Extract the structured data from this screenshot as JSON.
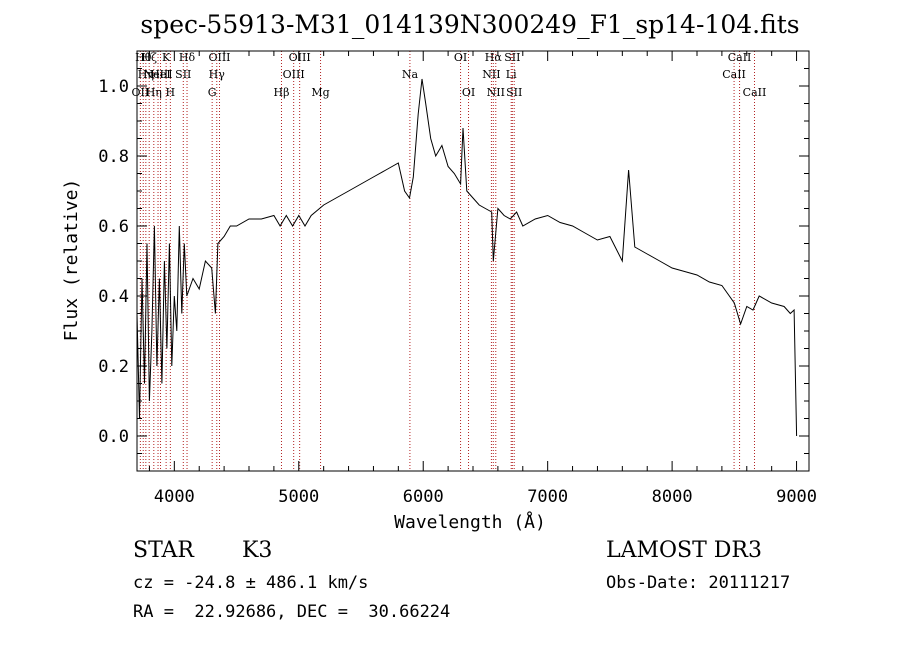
{
  "chart_data": {
    "type": "line",
    "title": "spec-55913-M31_014139N300249_F1_sp14-104.fits",
    "xlabel": "Wavelength (Å)",
    "ylabel": "Flux (relative)",
    "xlim": [
      3700,
      9100
    ],
    "ylim": [
      -0.1,
      1.1
    ],
    "x_ticks": [
      4000,
      5000,
      6000,
      7000,
      8000,
      9000
    ],
    "y_ticks": [
      0.0,
      0.2,
      0.4,
      0.6,
      0.8,
      1.0
    ],
    "x_tick_labels": [
      "4000",
      "5000",
      "6000",
      "7000",
      "8000",
      "9000"
    ],
    "y_tick_labels": [
      "0.0",
      "0.2",
      "0.4",
      "0.6",
      "0.8",
      "1.0"
    ],
    "grid": false,
    "line_color": "#000000",
    "marker_color": "#b22222",
    "series": [
      {
        "x": [
          3700,
          3720,
          3740,
          3760,
          3780,
          3800,
          3820,
          3840,
          3860,
          3880,
          3900,
          3920,
          3940,
          3960,
          3980,
          4000,
          4020,
          4040,
          4060,
          4080,
          4100,
          4150,
          4200,
          4250,
          4300,
          4330,
          4350,
          4400,
          4450,
          4500,
          4600,
          4700,
          4800,
          4850,
          4900,
          4950,
          5000,
          5050,
          5100,
          5200,
          5300,
          5400,
          5500,
          5600,
          5700,
          5800,
          5850,
          5890,
          5920,
          5960,
          5990,
          6020,
          6060,
          6100,
          6150,
          6200,
          6250,
          6300,
          6320,
          6350,
          6400,
          6450,
          6500,
          6550,
          6563,
          6600,
          6650,
          6700,
          6750,
          6800,
          6900,
          7000,
          7100,
          7200,
          7300,
          7400,
          7500,
          7600,
          7650,
          7700,
          7800,
          7900,
          8000,
          8100,
          8200,
          8300,
          8400,
          8500,
          8550,
          8600,
          8650,
          8700,
          8800,
          8900,
          8950,
          8980,
          9000
        ],
        "y": [
          0.35,
          0.05,
          0.45,
          0.15,
          0.55,
          0.1,
          0.3,
          0.6,
          0.2,
          0.45,
          0.15,
          0.5,
          0.25,
          0.55,
          0.2,
          0.4,
          0.3,
          0.6,
          0.35,
          0.55,
          0.4,
          0.45,
          0.42,
          0.5,
          0.48,
          0.35,
          0.55,
          0.57,
          0.6,
          0.6,
          0.62,
          0.62,
          0.63,
          0.6,
          0.63,
          0.6,
          0.63,
          0.6,
          0.63,
          0.66,
          0.68,
          0.7,
          0.72,
          0.74,
          0.76,
          0.78,
          0.7,
          0.68,
          0.74,
          0.92,
          1.02,
          0.95,
          0.85,
          0.8,
          0.83,
          0.77,
          0.75,
          0.72,
          0.88,
          0.7,
          0.68,
          0.66,
          0.65,
          0.64,
          0.5,
          0.65,
          0.63,
          0.62,
          0.64,
          0.6,
          0.62,
          0.63,
          0.61,
          0.6,
          0.58,
          0.56,
          0.57,
          0.5,
          0.76,
          0.54,
          0.52,
          0.5,
          0.48,
          0.47,
          0.46,
          0.44,
          0.43,
          0.38,
          0.32,
          0.37,
          0.36,
          0.4,
          0.38,
          0.37,
          0.35,
          0.36,
          0.0
        ]
      }
    ],
    "lines": [
      {
        "wl": 3727,
        "label": "OII",
        "row": 2
      },
      {
        "wl": 3750,
        "label": "Hθ",
        "row": 0
      },
      {
        "wl": 3771,
        "label": "Hη",
        "row": 1
      },
      {
        "wl": 3798,
        "label": "Hζ",
        "row": 0
      },
      {
        "wl": 3835,
        "label": "Hη",
        "row": 2
      },
      {
        "wl": 3869,
        "label": "NeIII",
        "row": 1
      },
      {
        "wl": 3889,
        "label": "HeI",
        "row": 1
      },
      {
        "wl": 3934,
        "label": "K",
        "row": 0
      },
      {
        "wl": 3968,
        "label": "H",
        "row": 2
      },
      {
        "wl": 4072,
        "label": "SII",
        "row": 1
      },
      {
        "wl": 4102,
        "label": "Hδ",
        "row": 0
      },
      {
        "wl": 4304,
        "label": "G",
        "row": 2
      },
      {
        "wl": 4341,
        "label": "Hγ",
        "row": 1
      },
      {
        "wl": 4363,
        "label": "OIII",
        "row": 0
      },
      {
        "wl": 4861,
        "label": "Hβ",
        "row": 2
      },
      {
        "wl": 4959,
        "label": "OIII",
        "row": 1
      },
      {
        "wl": 5007,
        "label": "OIII",
        "row": 0
      },
      {
        "wl": 5175,
        "label": "Mg",
        "row": 2
      },
      {
        "wl": 5893,
        "label": "Na",
        "row": 1
      },
      {
        "wl": 6300,
        "label": "OI",
        "row": 0
      },
      {
        "wl": 6364,
        "label": "OI",
        "row": 2
      },
      {
        "wl": 6548,
        "label": "NII",
        "row": 1
      },
      {
        "wl": 6563,
        "label": "Hα",
        "row": 0
      },
      {
        "wl": 6583,
        "label": "NII",
        "row": 2
      },
      {
        "wl": 6707,
        "label": "Li",
        "row": 1
      },
      {
        "wl": 6716,
        "label": "SII",
        "row": 0
      },
      {
        "wl": 6731,
        "label": "SII",
        "row": 2
      },
      {
        "wl": 8498,
        "label": "CaII",
        "row": 1
      },
      {
        "wl": 8542,
        "label": "CaII",
        "row": 0
      },
      {
        "wl": 8662,
        "label": "CaII",
        "row": 2
      }
    ]
  },
  "info": {
    "object_class": "STAR",
    "subclass": "K3",
    "redshift": "cz = -24.8 ± 486.1 km/s",
    "coords": "RA =  22.92686, DEC =  30.66224",
    "survey": "LAMOST DR3",
    "obs_date": "Obs-Date: 20111217"
  }
}
